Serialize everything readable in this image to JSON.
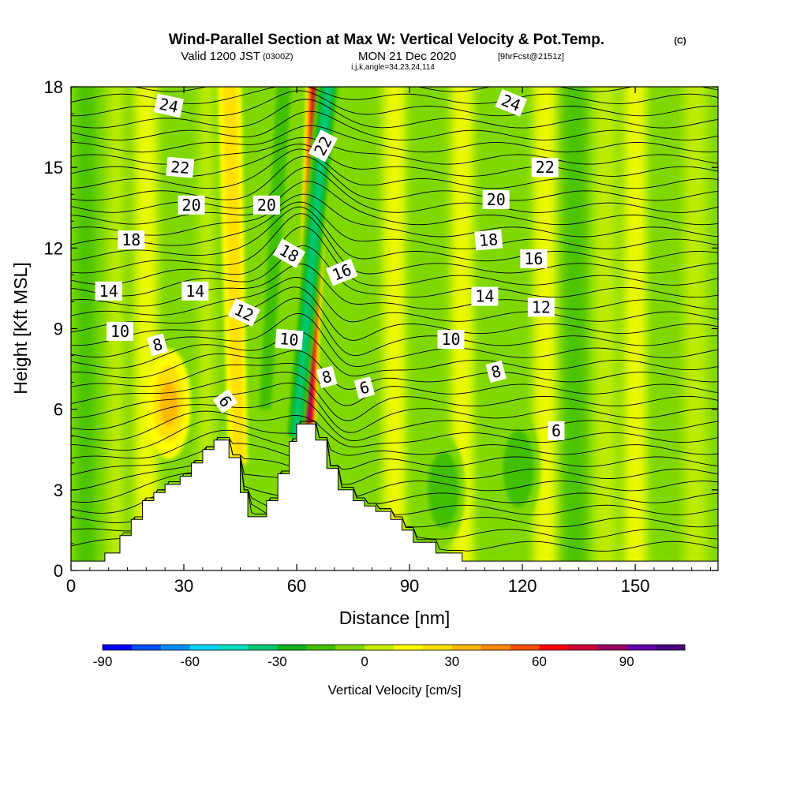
{
  "title": {
    "main": "Wind-Parallel Section at Max W: Vertical Velocity & Pot.Temp.",
    "copyright": "(C)",
    "valid_a": "Valid 1200 JST",
    "valid_zulu": "(0300Z)",
    "valid_b": "MON 21 Dec 2020",
    "forecast": "[9hrFcst@2151z]",
    "indices": "i,j,k,angle=34,23,24,114"
  },
  "chart_data": {
    "type": "contour",
    "xlabel": "Distance [nm]",
    "ylabel": "Height [Kft MSL]",
    "xlim": [
      0,
      172
    ],
    "ylim": [
      0,
      18
    ],
    "x_ticks": [
      0,
      30,
      60,
      90,
      120,
      150
    ],
    "y_ticks": [
      0,
      3,
      6,
      9,
      12,
      15,
      18
    ],
    "colorbar": {
      "label": "Vertical Velocity [cm/s]",
      "min": -90,
      "step": 10,
      "ticks": [
        -90,
        -60,
        -30,
        0,
        30,
        60,
        90
      ],
      "colors": [
        "#0000ff",
        "#0050ff",
        "#0090ff",
        "#00d8ff",
        "#00e0c0",
        "#00c870",
        "#10b020",
        "#40c000",
        "#80d800",
        "#c8f000",
        "#ffff00",
        "#ffe000",
        "#ffb800",
        "#ff8800",
        "#ff5000",
        "#ff0000",
        "#cc0033",
        "#990066",
        "#6600aa",
        "#4b0082"
      ]
    },
    "terrain_top_kft": [
      [
        0,
        0.35
      ],
      [
        9,
        0.35
      ],
      [
        9,
        0.65
      ],
      [
        13,
        0.65
      ],
      [
        13,
        1.3
      ],
      [
        16,
        1.3
      ],
      [
        16,
        1.9
      ],
      [
        19,
        1.9
      ],
      [
        19,
        2.6
      ],
      [
        22,
        2.6
      ],
      [
        22,
        2.9
      ],
      [
        25,
        2.9
      ],
      [
        25,
        3.2
      ],
      [
        29,
        3.2
      ],
      [
        29,
        3.5
      ],
      [
        32,
        3.5
      ],
      [
        32,
        4.0
      ],
      [
        35,
        4.0
      ],
      [
        35,
        4.5
      ],
      [
        38,
        4.5
      ],
      [
        38,
        4.85
      ],
      [
        42,
        4.85
      ],
      [
        42,
        4.2
      ],
      [
        45,
        4.2
      ],
      [
        45,
        2.9
      ],
      [
        47,
        2.9
      ],
      [
        47,
        2.0
      ],
      [
        52,
        2.0
      ],
      [
        52,
        2.6
      ],
      [
        55,
        2.6
      ],
      [
        55,
        3.6
      ],
      [
        58,
        3.6
      ],
      [
        58,
        4.8
      ],
      [
        60,
        4.8
      ],
      [
        60,
        5.45
      ],
      [
        65,
        5.45
      ],
      [
        65,
        4.85
      ],
      [
        68,
        4.85
      ],
      [
        68,
        3.8
      ],
      [
        71,
        3.8
      ],
      [
        71,
        3.0
      ],
      [
        75,
        3.0
      ],
      [
        75,
        2.6
      ],
      [
        78,
        2.6
      ],
      [
        78,
        2.4
      ],
      [
        81,
        2.4
      ],
      [
        81,
        2.2
      ],
      [
        85,
        2.2
      ],
      [
        85,
        1.9
      ],
      [
        88,
        1.9
      ],
      [
        88,
        1.5
      ],
      [
        91,
        1.5
      ],
      [
        91,
        1.05
      ],
      [
        97,
        1.05
      ],
      [
        97,
        0.65
      ],
      [
        104,
        0.65
      ],
      [
        104,
        0.35
      ],
      [
        172,
        0.35
      ]
    ],
    "velocity_features": [
      {
        "kind": "updraft_band",
        "x_bottom": 63,
        "x_top": 66,
        "y_from": 5.5,
        "y_to": 18,
        "peak_cms": 80
      },
      {
        "kind": "downdraft_band",
        "x_bottom": 60,
        "x_top": 69,
        "y_from": 5.0,
        "y_to": 18,
        "peak_cms": -45
      },
      {
        "kind": "downdraft_band",
        "x_bottom": 52,
        "x_top": 57,
        "y_from": 6,
        "y_to": 18,
        "peak_cms": -25
      },
      {
        "kind": "updraft_band",
        "x_bottom": 45,
        "x_top": 42,
        "y_from": 4,
        "y_to": 18,
        "peak_cms": 25
      },
      {
        "kind": "updraft_blob",
        "x": 26,
        "y": 6.2,
        "peak_cms": 30
      },
      {
        "kind": "downdraft_blob",
        "x": 99,
        "y": 3.0,
        "peak_cms": -25
      },
      {
        "kind": "downdraft_blob",
        "x": 119,
        "y": 3.8,
        "peak_cms": -20
      }
    ],
    "isentrope_label_values": [
      "24",
      "22",
      "20",
      "18",
      "16",
      "14",
      "12",
      "10",
      "8",
      "6"
    ],
    "contour_labels": [
      {
        "text": "24",
        "x": 26,
        "y": 17.3,
        "angle": 12
      },
      {
        "text": "24",
        "x": 117,
        "y": 17.4,
        "angle": 22
      },
      {
        "text": "22",
        "x": 67,
        "y": 15.8,
        "angle": -62
      },
      {
        "text": "22",
        "x": 29,
        "y": 15.0,
        "angle": 5
      },
      {
        "text": "22",
        "x": 126,
        "y": 15.0,
        "angle": 0
      },
      {
        "text": "20",
        "x": 32,
        "y": 13.6,
        "angle": 0
      },
      {
        "text": "20",
        "x": 52,
        "y": 13.6,
        "angle": 0
      },
      {
        "text": "20",
        "x": 113,
        "y": 13.8,
        "angle": 0
      },
      {
        "text": "18",
        "x": 16,
        "y": 12.3,
        "angle": 0
      },
      {
        "text": "18",
        "x": 58,
        "y": 11.8,
        "angle": 30
      },
      {
        "text": "18",
        "x": 111,
        "y": 12.3,
        "angle": -5
      },
      {
        "text": "16",
        "x": 72,
        "y": 11.1,
        "angle": -22
      },
      {
        "text": "16",
        "x": 123,
        "y": 11.6,
        "angle": 0
      },
      {
        "text": "14",
        "x": 10,
        "y": 10.4,
        "angle": 0
      },
      {
        "text": "14",
        "x": 33,
        "y": 10.4,
        "angle": 0
      },
      {
        "text": "14",
        "x": 110,
        "y": 10.2,
        "angle": 0
      },
      {
        "text": "12",
        "x": 46,
        "y": 9.6,
        "angle": 25
      },
      {
        "text": "12",
        "x": 125,
        "y": 9.8,
        "angle": 0
      },
      {
        "text": "10",
        "x": 13,
        "y": 8.9,
        "angle": 0
      },
      {
        "text": "10",
        "x": 58,
        "y": 8.6,
        "angle": 5
      },
      {
        "text": "10",
        "x": 101,
        "y": 8.6,
        "angle": 0
      },
      {
        "text": "8",
        "x": 23,
        "y": 8.4,
        "angle": -15
      },
      {
        "text": "8",
        "x": 68,
        "y": 7.2,
        "angle": -15
      },
      {
        "text": "8",
        "x": 113,
        "y": 7.4,
        "angle": -15
      },
      {
        "text": "6",
        "x": 41,
        "y": 6.3,
        "angle": 55
      },
      {
        "text": "6",
        "x": 78,
        "y": 6.8,
        "angle": -15
      },
      {
        "text": "6",
        "x": 129,
        "y": 5.2,
        "angle": 0
      }
    ]
  }
}
